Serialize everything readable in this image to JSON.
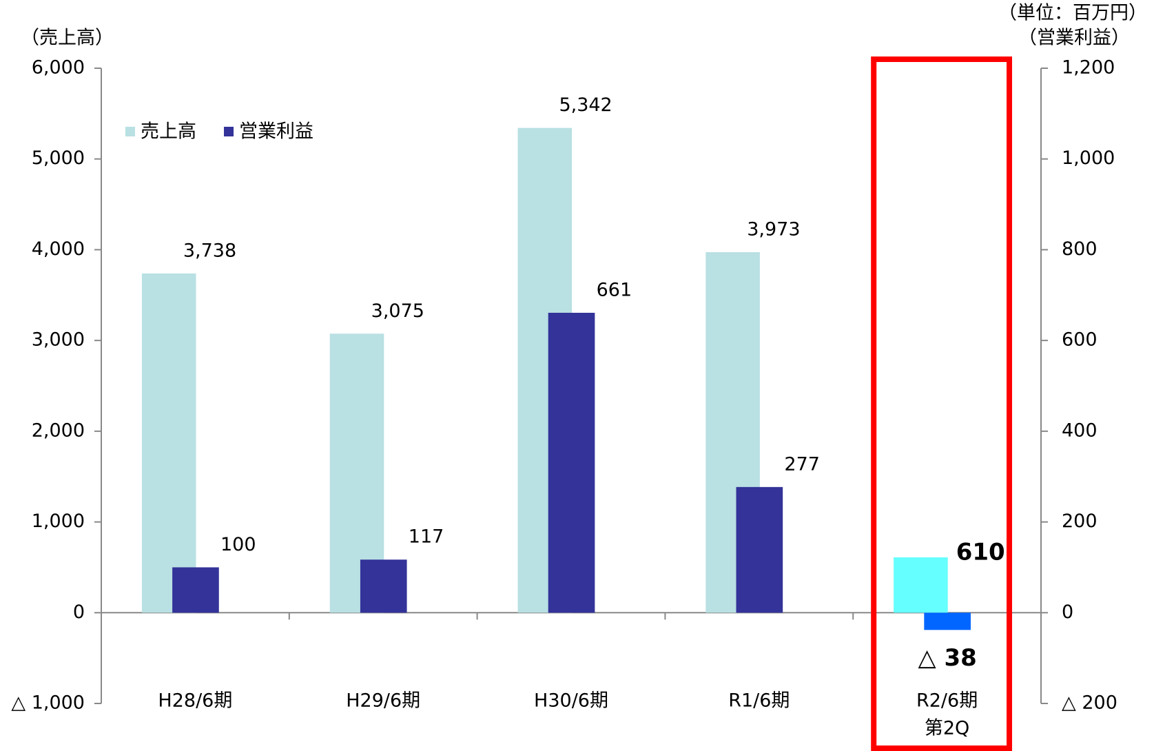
{
  "chart_data": {
    "type": "bar",
    "y_unit_label": "（売上高）",
    "y2_unit_label": "（単位：百万円）",
    "y2_axis_label": "（営業利益）",
    "categories": [
      [
        "H28/6期"
      ],
      [
        "H29/6期"
      ],
      [
        "H30/6期"
      ],
      [
        "R1/6期"
      ],
      [
        "R2/6期",
        "第2Q"
      ]
    ],
    "series": [
      {
        "name": "売上高",
        "color": "#b9e0e3",
        "axis": "y",
        "point_colors": [
          "#b9e0e3",
          "#b9e0e3",
          "#b9e0e3",
          "#b9e0e3",
          "#66ffff"
        ],
        "values": [
          3738,
          3075,
          5342,
          3973,
          610
        ],
        "value_labels": [
          "3,738",
          "3,075",
          "5,342",
          "3,973",
          "610"
        ]
      },
      {
        "name": "営業利益",
        "color": "#333399",
        "axis": "y2",
        "point_colors": [
          "#333399",
          "#333399",
          "#333399",
          "#333399",
          "#0066ff"
        ],
        "values": [
          100,
          117,
          661,
          277,
          -38
        ],
        "value_labels": [
          "100",
          "117",
          "661",
          "277",
          "△ 38"
        ]
      }
    ],
    "ylim": [
      -1000,
      6000
    ],
    "yticks": [
      {
        "value": -1000,
        "label": "△ 1,000"
      },
      0,
      {
        "value": 1000,
        "label": "1,000"
      },
      {
        "value": 2000,
        "label": "2,000"
      },
      {
        "value": 3000,
        "label": "3,000"
      },
      {
        "value": 4000,
        "label": "4,000"
      },
      {
        "value": 5000,
        "label": "5,000"
      },
      {
        "value": 6000,
        "label": "6,000"
      }
    ],
    "y2lim": [
      -200,
      1200
    ],
    "y2ticks": [
      {
        "value": -200,
        "label": "△ 200"
      },
      0,
      200,
      400,
      600,
      800,
      {
        "value": 1000,
        "label": "1,000"
      },
      {
        "value": 1200,
        "label": "1,200"
      }
    ],
    "highlight": 4,
    "highlight_color": "#ff0000",
    "legend": "top-left"
  }
}
